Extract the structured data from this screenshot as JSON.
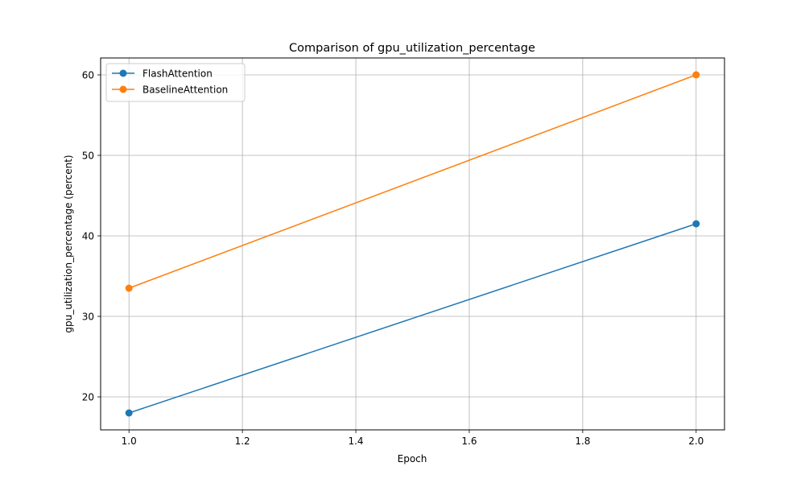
{
  "chart_data": {
    "type": "line",
    "title": "Comparison of gpu_utilization_percentage",
    "xlabel": "Epoch",
    "ylabel": "gpu_utilization_percentage (percent)",
    "x": [
      1.0,
      2.0
    ],
    "xlim": [
      0.95,
      2.05
    ],
    "ylim": [
      15.9,
      62.1
    ],
    "xticks": [
      1.0,
      1.2,
      1.4,
      1.6,
      1.8,
      2.0
    ],
    "xtick_labels": [
      "1.0",
      "1.2",
      "1.4",
      "1.6",
      "1.8",
      "2.0"
    ],
    "yticks": [
      20,
      30,
      40,
      50,
      60
    ],
    "ytick_labels": [
      "20",
      "30",
      "40",
      "50",
      "60"
    ],
    "grid": true,
    "legend_position": "top-left",
    "series": [
      {
        "name": "FlashAttention",
        "values": [
          18.0,
          41.5
        ],
        "color": "#1f77b4",
        "marker": "circle"
      },
      {
        "name": "BaselineAttention",
        "values": [
          33.5,
          60.0
        ],
        "color": "#ff7f0e",
        "marker": "circle"
      }
    ]
  }
}
